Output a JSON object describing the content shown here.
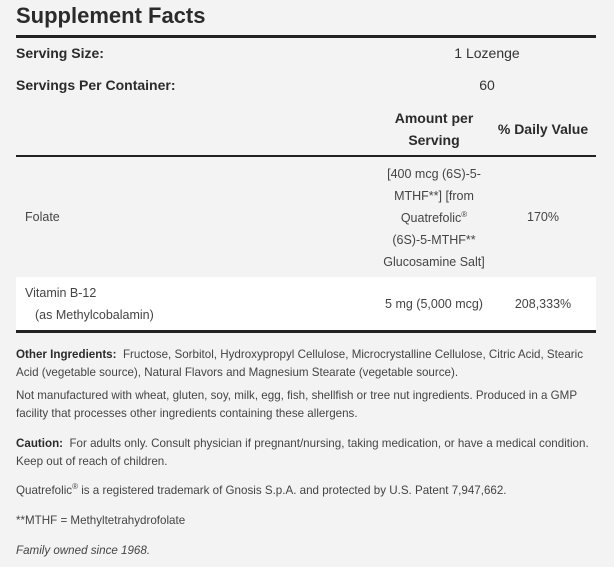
{
  "title": "Supplement Facts",
  "serving_size": {
    "label": "Serving Size:",
    "value": "1 Lozenge"
  },
  "servings_per_container": {
    "label": "Servings Per Container:",
    "value": "60"
  },
  "columns": {
    "amount_line1": "Amount per",
    "amount_line2": "Serving",
    "daily_value": "% Daily Value"
  },
  "rows": [
    {
      "name": "Folate",
      "amount_lines": [
        "[400 mcg (6S)-5-",
        "MTHF**] [from",
        "Quatrefolic",
        "(6S)-5-MTHF**",
        "Glucosamine Salt]"
      ],
      "reg": "®",
      "dv": "170%"
    },
    {
      "name": "Vitamin B-12",
      "sub": "(as Methylcobalamin)",
      "amount": "5 mg (5,000 mcg)",
      "dv": "208,333%"
    }
  ],
  "other_ingredients": {
    "label": "Other Ingredients:",
    "text": "Fructose, Sorbitol, Hydroxypropyl Cellulose, Microcrystalline Cellulose, Citric Acid, Stearic Acid (vegetable source), Natural Flavors and Magnesium Stearate (vegetable source)."
  },
  "allergen_note": "Not manufactured with wheat, gluten, soy, milk, egg, fish, shellfish or tree nut ingredients. Produced in a GMP facility that processes other ingredients containing these allergens.",
  "caution": {
    "label": "Caution:",
    "text": "For adults only. Consult physician if pregnant/nursing, taking medication, or have a medical condition. Keep out of reach of children."
  },
  "trademark": {
    "brand": "Quatrefolic",
    "reg": "®",
    "text": " is a registered trademark of Gnosis S.p.A. and protected by U.S. Patent 7,947,662."
  },
  "footnote": "**MTHF = Methyltetrahydrofolate",
  "family": "Family owned since 1968."
}
